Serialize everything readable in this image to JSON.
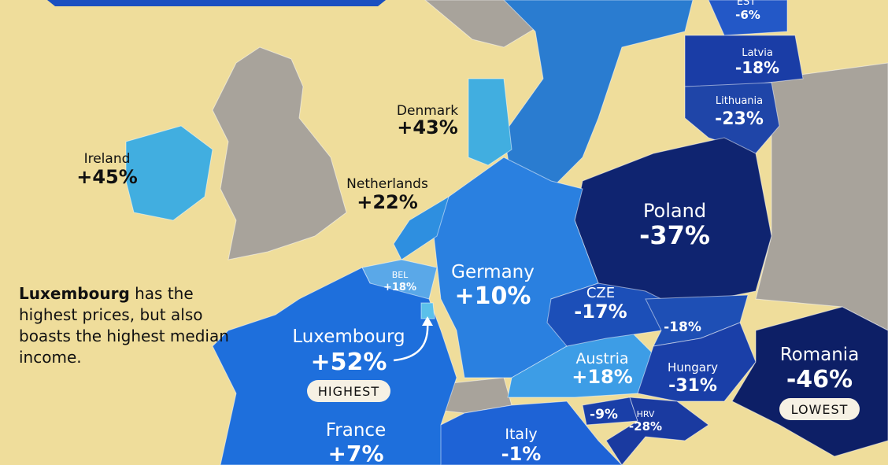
{
  "annotation": {
    "bold": "Luxembourg",
    "text": " has the highest prices, but also boasts the highest median income."
  },
  "countries": [
    {
      "name": "EST",
      "label": "-6%"
    },
    {
      "name": "Latvia",
      "label": "-18%"
    },
    {
      "name": "Lithuania",
      "label": "-23%"
    },
    {
      "name": "Denmark",
      "label": "+43%"
    },
    {
      "name": "Ireland",
      "label": "+45%"
    },
    {
      "name": "Netherlands",
      "label": "+22%"
    },
    {
      "name": "Poland",
      "label": "-37%"
    },
    {
      "name": "BEL",
      "label": "+18%"
    },
    {
      "name": "Germany",
      "label": "+10%"
    },
    {
      "name": "CZE",
      "label": "-17%"
    },
    {
      "label": "-18%"
    },
    {
      "name": "Luxembourg",
      "label": "+52%"
    },
    {
      "name": "Austria",
      "label": "+18%"
    },
    {
      "name": "Hungary",
      "label": "-31%"
    },
    {
      "name": "Romania",
      "label": "-46%"
    },
    {
      "label": "-9%"
    },
    {
      "name": "HRV",
      "label": "-28%"
    },
    {
      "name": "France",
      "label": "+7%"
    },
    {
      "name": "Italy",
      "label": "-1%"
    }
  ],
  "badges": {
    "highest": "HIGHEST",
    "lowest": "LOWEST"
  }
}
